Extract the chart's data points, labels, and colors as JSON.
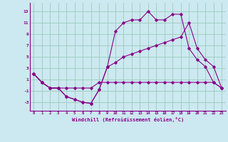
{
  "xlabel": "Windchill (Refroidissement éolien,°C)",
  "background_color": "#cce8f0",
  "grid_color": "#99ccbb",
  "line_color": "#880088",
  "xlim": [
    -0.5,
    23.5
  ],
  "ylim": [
    -4.5,
    14.5
  ],
  "xticks": [
    0,
    1,
    2,
    3,
    4,
    5,
    6,
    7,
    8,
    9,
    10,
    11,
    12,
    13,
    14,
    15,
    16,
    17,
    18,
    19,
    20,
    21,
    22,
    23
  ],
  "yticks": [
    -3,
    -1,
    1,
    3,
    5,
    7,
    9,
    11,
    13
  ],
  "series_flat_x": [
    0,
    1,
    2,
    3,
    4,
    5,
    6,
    7,
    8,
    9,
    10,
    11,
    12,
    13,
    14,
    15,
    16,
    17,
    18,
    19,
    20,
    21,
    22,
    23
  ],
  "series_flat_y": [
    2,
    0.5,
    -0.5,
    -0.5,
    -0.5,
    -0.5,
    -0.5,
    -0.5,
    0.5,
    0.5,
    0.5,
    0.5,
    0.5,
    0.5,
    0.5,
    0.5,
    0.5,
    0.5,
    0.5,
    0.5,
    0.5,
    0.5,
    0.5,
    -0.5
  ],
  "series_upper_x": [
    0,
    1,
    2,
    3,
    4,
    5,
    6,
    7,
    8,
    9,
    10,
    11,
    12,
    13,
    14,
    15,
    16,
    17,
    18,
    19,
    20,
    21,
    22,
    23
  ],
  "series_upper_y": [
    2,
    0.5,
    -0.5,
    -0.5,
    -2.0,
    -2.5,
    -3.0,
    -3.2,
    -0.8,
    3.2,
    9.5,
    11.0,
    11.5,
    11.5,
    13.0,
    11.5,
    11.5,
    12.5,
    12.5,
    6.5,
    4.5,
    3.3,
    0.5,
    -0.5
  ],
  "series_diag_x": [
    0,
    1,
    2,
    3,
    4,
    5,
    6,
    7,
    8,
    9,
    10,
    11,
    12,
    13,
    14,
    15,
    16,
    17,
    18,
    19,
    20,
    21,
    22,
    23
  ],
  "series_diag_y": [
    2,
    0.5,
    -0.5,
    -0.5,
    -2.0,
    -2.5,
    -3.0,
    -3.2,
    -0.8,
    3.2,
    4.0,
    5.0,
    5.5,
    6.0,
    6.5,
    7.0,
    7.5,
    8.0,
    8.5,
    11.0,
    6.5,
    4.5,
    3.3,
    -0.5
  ]
}
